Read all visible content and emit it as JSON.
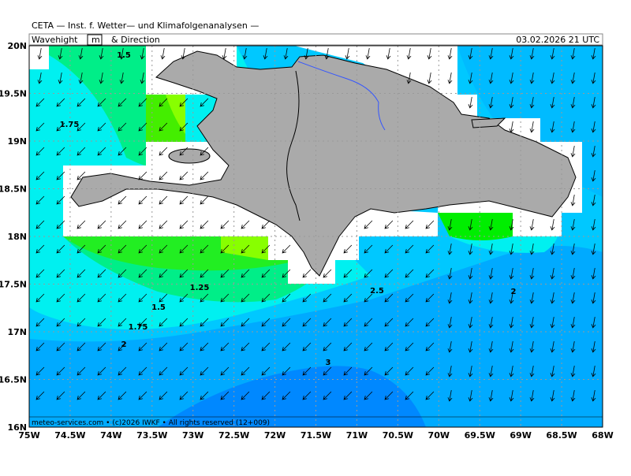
{
  "header": {
    "title": "CETA — Inst. f. Wetter— und Klimafolgenanalysen —",
    "variable": "Wavehight",
    "unit": "m",
    "suffix": "& Direction",
    "datetime": "03.02.2026 21 UTC"
  },
  "map": {
    "lat_labels": [
      "20N",
      "19.5N",
      "19N",
      "18.5N",
      "18N",
      "17.5N",
      "17N",
      "16.5N",
      "16N"
    ],
    "lon_labels": [
      "75W",
      "74.5W",
      "74W",
      "73.5W",
      "73W",
      "72.5W",
      "72W",
      "71.5W",
      "71W",
      "70.5W",
      "70W",
      "69.5W",
      "69W",
      "68.5W",
      "68W"
    ],
    "contour_labels": [
      "1.5",
      "1.75",
      "1.25",
      "1.5",
      "1.75",
      "2",
      "2.5",
      "3",
      "2"
    ]
  },
  "footer": "meteo-services.com • (c)2026 IWKF • All rights reserved (12+009)"
}
